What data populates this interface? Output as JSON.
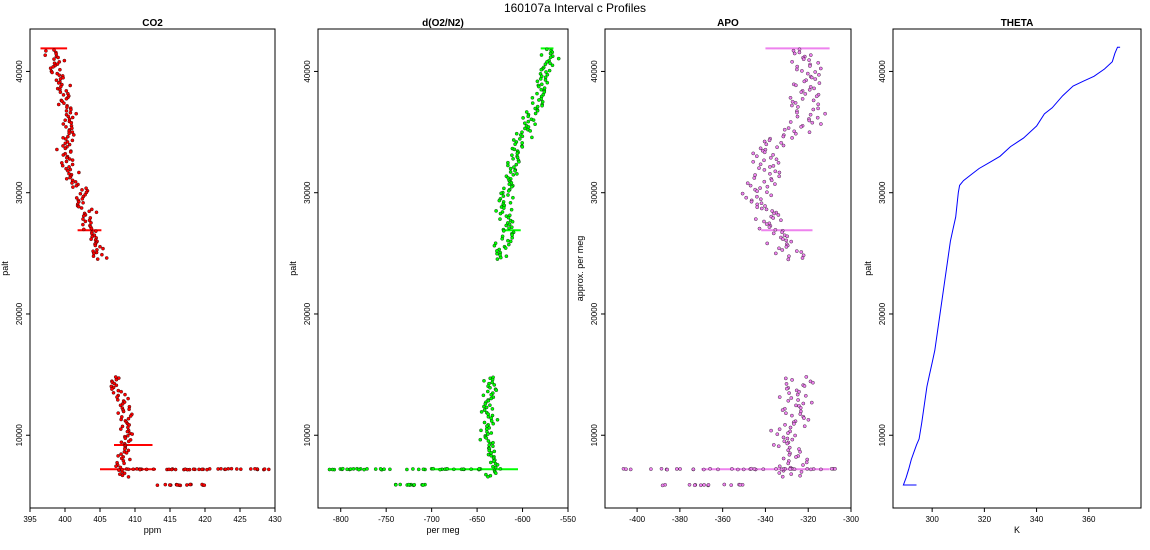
{
  "figure_title": "160107a   Interval c Profiles",
  "chart_data": [
    {
      "type": "scatter",
      "title": "CO2",
      "xlabel": "ppm",
      "ylabel": "palt",
      "xlim": [
        395,
        430
      ],
      "ylim": [
        4000,
        43500
      ],
      "xticks": [
        395,
        400,
        405,
        410,
        415,
        420,
        425,
        430
      ],
      "yticks": [
        10000,
        20000,
        30000,
        40000
      ],
      "color": "#ff0000",
      "profile": [
        [
          41800,
          398.0
        ],
        [
          41000,
          398.3
        ],
        [
          40000,
          398.9
        ],
        [
          39000,
          399.6
        ],
        [
          38000,
          399.9
        ],
        [
          37000,
          400.3
        ],
        [
          36000,
          400.5
        ],
        [
          35000,
          401.0
        ],
        [
          34000,
          400.2
        ],
        [
          33000,
          400.0
        ],
        [
          32000,
          400.5
        ],
        [
          31000,
          401.5
        ],
        [
          30000,
          402.2
        ],
        [
          29000,
          403.0
        ],
        [
          28000,
          403.3
        ],
        [
          27000,
          403.4
        ],
        [
          26000,
          404.0
        ],
        [
          25000,
          404.4
        ],
        [
          24500,
          405.0
        ],
        [
          14800,
          407.0
        ],
        [
          14000,
          407.6
        ],
        [
          13000,
          408.2
        ],
        [
          12000,
          408.5
        ],
        [
          11000,
          408.7
        ],
        [
          10000,
          409.0
        ],
        [
          9000,
          408.8
        ],
        [
          8000,
          408.5
        ],
        [
          7200,
          408.0
        ],
        [
          6500,
          409.0
        ]
      ],
      "jitter": 1.0,
      "tails": [
        {
          "y": 7200,
          "from": 405,
          "to": 430,
          "n": 40
        },
        {
          "y": 5900,
          "from": 413,
          "to": 420,
          "n": 14
        }
      ],
      "hlines": [
        {
          "y": 41900,
          "from": 396.5,
          "to": 400.3
        },
        {
          "y": 26900,
          "from": 401.8,
          "to": 405.2
        },
        {
          "y": 9200,
          "from": 407.0,
          "to": 412.5
        },
        {
          "y": 7200,
          "from": 405.0,
          "to": 413.0
        }
      ]
    },
    {
      "type": "scatter",
      "title": "d(O2/N2)",
      "xlabel": "per meg",
      "ylabel": "palt",
      "xlim": [
        -825,
        -550
      ],
      "ylim": [
        4000,
        43500
      ],
      "xticks": [
        -800,
        -750,
        -700,
        -650,
        -600,
        -550
      ],
      "yticks": [
        10000,
        20000,
        30000,
        40000
      ],
      "color": "#00ff00",
      "profile": [
        [
          41800,
          -572
        ],
        [
          41000,
          -570
        ],
        [
          40000,
          -575
        ],
        [
          39000,
          -578
        ],
        [
          38000,
          -582
        ],
        [
          37000,
          -585
        ],
        [
          36000,
          -592
        ],
        [
          35000,
          -598
        ],
        [
          34000,
          -602
        ],
        [
          33000,
          -607
        ],
        [
          32000,
          -610
        ],
        [
          31000,
          -614
        ],
        [
          30000,
          -617
        ],
        [
          29000,
          -622
        ],
        [
          28000,
          -618
        ],
        [
          27000,
          -612
        ],
        [
          26000,
          -620
        ],
        [
          25000,
          -623
        ],
        [
          24500,
          -624
        ],
        [
          14800,
          -633
        ],
        [
          14000,
          -635
        ],
        [
          13000,
          -638
        ],
        [
          12000,
          -640
        ],
        [
          11000,
          -637
        ],
        [
          10000,
          -638
        ],
        [
          9000,
          -636
        ],
        [
          8000,
          -632
        ],
        [
          7200,
          -628
        ],
        [
          6500,
          -640
        ]
      ],
      "jitter": 7,
      "tails": [
        {
          "y": 7200,
          "from": -815,
          "to": -620,
          "n": 40
        },
        {
          "y": 5900,
          "from": -740,
          "to": -705,
          "n": 12
        }
      ],
      "hlines": [
        {
          "y": 41900,
          "from": -580,
          "to": -566
        },
        {
          "y": 26900,
          "from": -620,
          "to": -602
        },
        {
          "y": 7200,
          "from": -700,
          "to": -605
        }
      ]
    },
    {
      "type": "scatter",
      "title": "APO",
      "xlabel": "",
      "ylabel": "approx. per meg",
      "xlim": [
        -415,
        -300
      ],
      "ylim": [
        4000,
        43500
      ],
      "xticks": [
        -400,
        -380,
        -360,
        -340,
        -320,
        -300
      ],
      "yticks": [
        10000,
        20000,
        30000,
        40000
      ],
      "color": "#ee82ee",
      "profile": [
        [
          41800,
          -322
        ],
        [
          41000,
          -320
        ],
        [
          40000,
          -322
        ],
        [
          39000,
          -321
        ],
        [
          38000,
          -320
        ],
        [
          37000,
          -321
        ],
        [
          36000,
          -322
        ],
        [
          35000,
          -325
        ],
        [
          34000,
          -338
        ],
        [
          33000,
          -340
        ],
        [
          32000,
          -340
        ],
        [
          31000,
          -339
        ],
        [
          30000,
          -343
        ],
        [
          29000,
          -345
        ],
        [
          28000,
          -340
        ],
        [
          27000,
          -335
        ],
        [
          26000,
          -330
        ],
        [
          25000,
          -328
        ],
        [
          24500,
          -330
        ],
        [
          14800,
          -328
        ],
        [
          14000,
          -327
        ],
        [
          13000,
          -326
        ],
        [
          12000,
          -327
        ],
        [
          11000,
          -328
        ],
        [
          10000,
          -328
        ],
        [
          9000,
          -327
        ],
        [
          8000,
          -326
        ],
        [
          7200,
          -328
        ],
        [
          6500,
          -330
        ]
      ],
      "jitter": 7,
      "tails": [
        {
          "y": 7200,
          "from": -408,
          "to": -305,
          "n": 36
        },
        {
          "y": 5900,
          "from": -390,
          "to": -345,
          "n": 14
        }
      ],
      "hlines": [
        {
          "y": 41900,
          "from": -340,
          "to": -310
        },
        {
          "y": 26900,
          "from": -342,
          "to": -318
        },
        {
          "y": 7200,
          "from": -370,
          "to": -310
        }
      ]
    },
    {
      "type": "line",
      "title": "THETA",
      "xlabel": "K",
      "ylabel": "palt",
      "xlim": [
        285,
        380
      ],
      "ylim": [
        4000,
        43500
      ],
      "xticks": [
        300,
        320,
        340,
        360
      ],
      "yticks": [
        10000,
        20000,
        30000,
        40000
      ],
      "color": "#0000ff",
      "line": [
        [
          294,
          5900
        ],
        [
          289,
          5900
        ],
        [
          290,
          6500
        ],
        [
          291,
          7200
        ],
        [
          292,
          8000
        ],
        [
          293,
          8600
        ],
        [
          294,
          9200
        ],
        [
          295,
          9700
        ],
        [
          296,
          11000
        ],
        [
          297,
          12500
        ],
        [
          298,
          14000
        ],
        [
          299,
          15000
        ],
        [
          300,
          16000
        ],
        [
          301,
          17000
        ],
        [
          302,
          18500
        ],
        [
          303,
          20000
        ],
        [
          304,
          21500
        ],
        [
          305,
          23000
        ],
        [
          306,
          24500
        ],
        [
          307,
          26000
        ],
        [
          308,
          27000
        ],
        [
          309,
          28000
        ],
        [
          309.5,
          29000
        ],
        [
          310,
          30000
        ],
        [
          310.5,
          30600
        ],
        [
          312,
          31000
        ],
        [
          315,
          31500
        ],
        [
          318,
          32000
        ],
        [
          322,
          32500
        ],
        [
          326,
          33000
        ],
        [
          330,
          33800
        ],
        [
          335,
          34500
        ],
        [
          340,
          35500
        ],
        [
          343,
          36500
        ],
        [
          346,
          37000
        ],
        [
          350,
          38000
        ],
        [
          354,
          38800
        ],
        [
          358,
          39200
        ],
        [
          362,
          39600
        ],
        [
          366,
          40200
        ],
        [
          369,
          40800
        ],
        [
          370,
          41500
        ],
        [
          371,
          42000
        ],
        [
          372,
          42000
        ]
      ]
    }
  ]
}
